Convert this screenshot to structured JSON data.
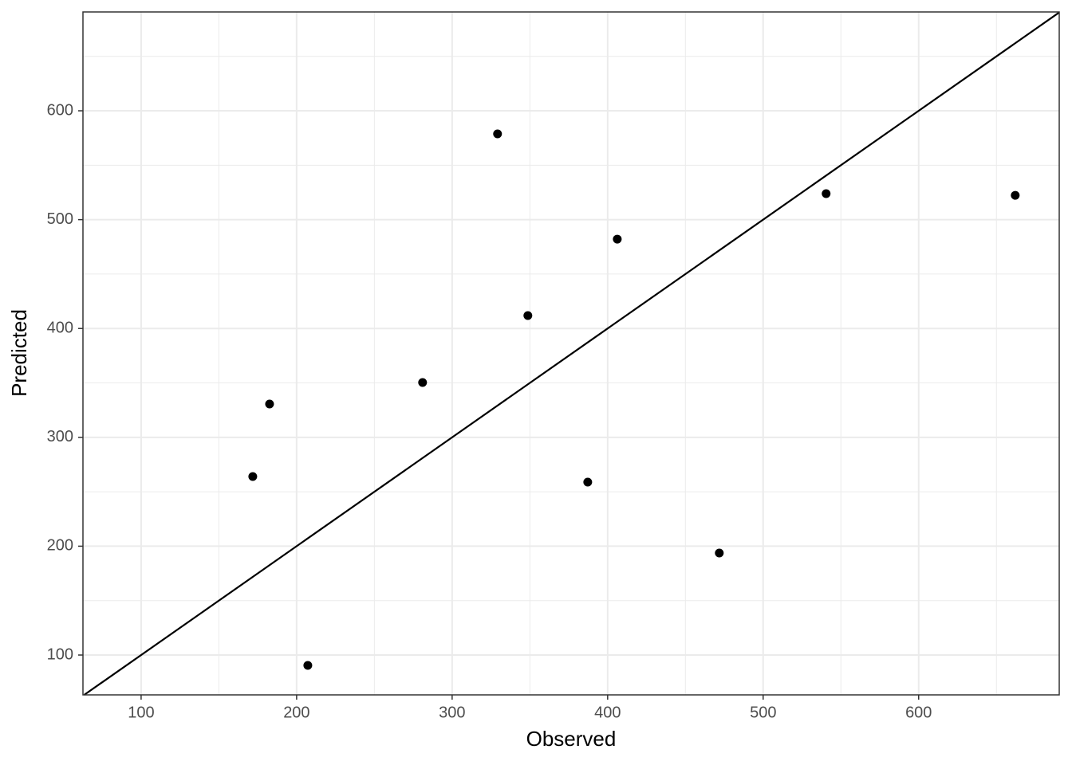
{
  "chart_data": {
    "type": "scatter",
    "x_label": "Observed",
    "y_label": "Predicted",
    "x": [
      171.8,
      182.6,
      207.2,
      281.0,
      329.2,
      348.7,
      387.2,
      406.2,
      471.8,
      540.5,
      662.1
    ],
    "series": [
      {
        "color": "#000000",
        "values": [
          264,
          330.6,
          90.5,
          350.4,
          578.8,
          411.9,
          258.9,
          482.1,
          193.7,
          523.9,
          522.3
        ]
      }
    ],
    "xlim": [
      62.6,
      690.4
    ],
    "ylim": [
      63.4,
      690.8
    ],
    "xticks": [
      100,
      200,
      300,
      400,
      500,
      600
    ],
    "yticks": [
      100,
      200,
      300,
      400,
      500,
      600
    ],
    "x_minor_grid": [
      150,
      250,
      350,
      450,
      550,
      650
    ],
    "y_minor_grid": [
      150,
      250,
      350,
      450,
      550,
      650
    ],
    "grid": true,
    "identity_line": true
  }
}
